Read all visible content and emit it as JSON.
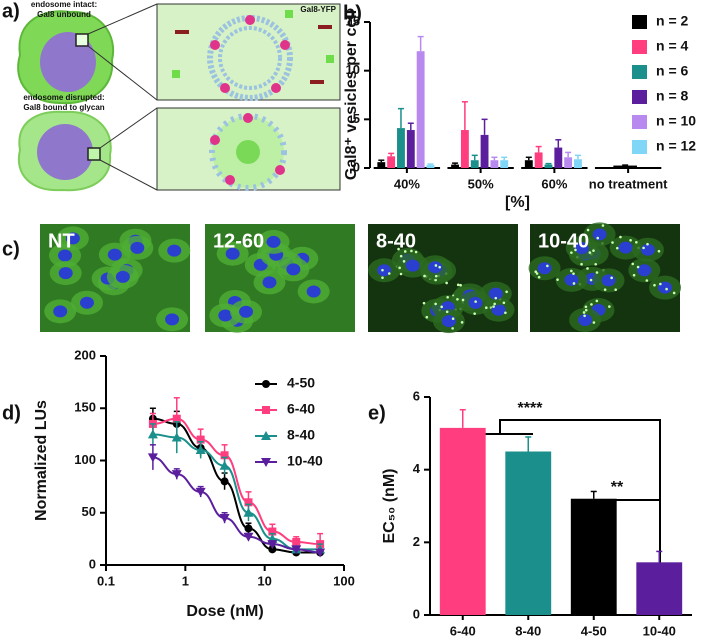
{
  "panel_a": {
    "label": "a)",
    "top_caption": [
      "endosome intact:",
      "Gal8 unbound"
    ],
    "bottom_caption": [
      "endosome disrupted:",
      "Gal8 bound to glycan"
    ],
    "inset_label": "Gal8-YFP"
  },
  "panel_c": {
    "label": "c)",
    "images": [
      "NT",
      "12-60",
      "8-40",
      "10-40"
    ]
  },
  "chart_data": [
    {
      "type": "bar",
      "panel_label": "b)",
      "y_label": "Gal8⁺ vesicles per cell",
      "x_label": "[%]",
      "categories": [
        "40%",
        "50%",
        "60%",
        "no treatment"
      ],
      "ylim": [
        0,
        15
      ],
      "yticks": [
        0,
        5,
        10,
        15
      ],
      "legend": "upper right",
      "series": [
        {
          "name": "n = 2",
          "color": "#000000",
          "values": [
            0.6,
            0.35,
            0.8,
            0.25
          ],
          "errors": [
            0.2,
            0.15,
            0.3,
            0.05
          ]
        },
        {
          "name": "n = 4",
          "color": "#ff3d7f",
          "values": [
            1.2,
            3.9,
            1.6,
            null
          ],
          "errors": [
            0.3,
            2.9,
            0.6,
            null
          ]
        },
        {
          "name": "n = 6",
          "color": "#1a8f8c",
          "values": [
            4.1,
            0.8,
            0.35,
            null
          ],
          "errors": [
            2.0,
            0.5,
            0.1,
            null
          ]
        },
        {
          "name": "n = 8",
          "color": "#5b1f9e",
          "values": [
            3.9,
            3.4,
            2.1,
            null
          ],
          "errors": [
            0.7,
            1.6,
            0.8,
            null
          ]
        },
        {
          "name": "n = 10",
          "color": "#b88af0",
          "values": [
            12.0,
            0.8,
            1.1,
            null
          ],
          "errors": [
            1.5,
            0.3,
            0.5,
            null
          ]
        },
        {
          "name": "n = 12",
          "color": "#7fd6f7",
          "values": [
            0.3,
            0.8,
            0.9,
            null
          ],
          "errors": [
            0.1,
            0.3,
            0.4,
            null
          ]
        }
      ]
    },
    {
      "type": "scatter",
      "panel_label": "d)",
      "x_label": "Dose (nM)",
      "y_label": "Normalized LUs",
      "log_x": true,
      "x": [
        0.39,
        0.78,
        1.56,
        3.125,
        6.25,
        12.5,
        25,
        50
      ],
      "xlim": [
        0.1,
        100
      ],
      "xticks": [
        0.1,
        1,
        10,
        100
      ],
      "ylim": [
        0,
        200
      ],
      "yticks": [
        0,
        50,
        100,
        150,
        200
      ],
      "legend": "upper right",
      "series": [
        {
          "name": "4-50",
          "color": "#000000",
          "marker": "circle",
          "values": [
            140,
            135,
            112,
            80,
            35,
            15,
            12,
            12
          ],
          "errors": [
            10,
            12,
            8,
            8,
            5,
            3,
            2,
            2
          ]
        },
        {
          "name": "6-40",
          "color": "#ff3d7f",
          "marker": "square",
          "values": [
            135,
            140,
            120,
            105,
            60,
            32,
            22,
            20
          ],
          "errors": [
            10,
            20,
            10,
            10,
            10,
            7,
            5,
            10
          ]
        },
        {
          "name": "8-40",
          "color": "#1a8f8c",
          "marker": "triangle",
          "values": [
            125,
            122,
            110,
            95,
            50,
            25,
            15,
            15
          ],
          "errors": [
            10,
            15,
            8,
            8,
            8,
            5,
            3,
            5
          ]
        },
        {
          "name": "10-40",
          "color": "#5b1f9e",
          "marker": "triangle-down",
          "values": [
            103,
            87,
            70,
            45,
            27,
            20,
            15,
            12
          ],
          "errors": [
            12,
            5,
            5,
            5,
            3,
            3,
            2,
            2
          ]
        }
      ]
    },
    {
      "type": "bar",
      "panel_label": "e)",
      "y_label": "EC₅₀ (nM)",
      "categories": [
        "6-40",
        "8-40",
        "4-50",
        "10-40"
      ],
      "values": [
        5.15,
        4.5,
        3.2,
        1.45
      ],
      "errors": [
        0.5,
        0.4,
        0.2,
        0.3
      ],
      "colors": [
        "#ff3d7f",
        "#1a8f8c",
        "#000000",
        "#5b1f9e"
      ],
      "ylim": [
        0,
        6
      ],
      "yticks": [
        0,
        2,
        4,
        6
      ],
      "annotations": [
        "****",
        "**"
      ]
    }
  ]
}
